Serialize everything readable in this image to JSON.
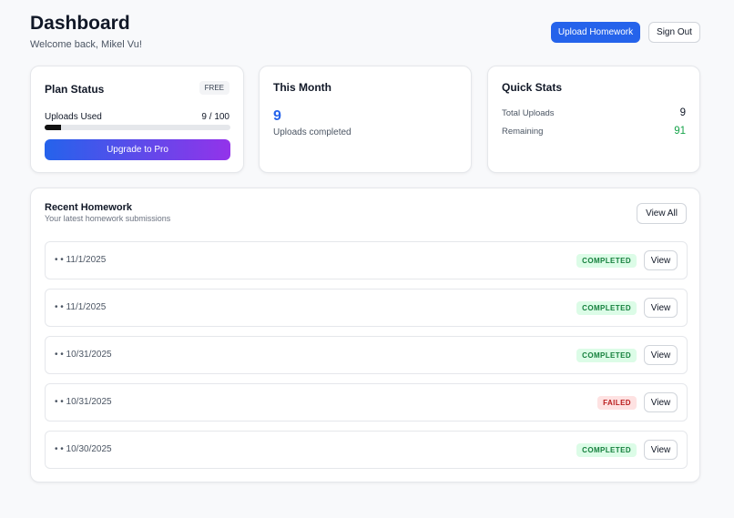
{
  "header": {
    "title": "Dashboard",
    "subtitle": "Welcome back, Mikel Vu!",
    "buttons": [
      "Upload Homework",
      "Sign Out"
    ]
  },
  "plan": {
    "title": "Plan Status",
    "badge": "FREE",
    "uploads_label": "Uploads Used",
    "uploads_used": 9,
    "separator": "/",
    "uploads_limit": 100,
    "button": "Upgrade to Pro"
  },
  "month": {
    "title": "This Month",
    "value": 9,
    "label": "Uploads completed"
  },
  "stats": {
    "title": "Quick Stats",
    "rows": [
      {
        "label": "Total Uploads",
        "value": 9,
        "color": "#111827"
      },
      {
        "label": "Remaining",
        "value": 91,
        "color": "#16a34a"
      }
    ]
  },
  "recent": {
    "title": "Recent Homework",
    "subtitle": "Your latest homework submissions",
    "button": "View All",
    "items": [
      {
        "title": "• • 11/1/2025",
        "status": "COMPLETED",
        "status_color": "#15803d",
        "status_bg": "#dcfce7",
        "action": "View"
      },
      {
        "title": "• • 11/1/2025",
        "status": "COMPLETED",
        "status_color": "#15803d",
        "status_bg": "#dcfce7",
        "action": "View"
      },
      {
        "title": "• • 10/31/2025",
        "status": "COMPLETED",
        "status_color": "#15803d",
        "status_bg": "#dcfce7",
        "action": "View"
      },
      {
        "title": "• • 10/31/2025",
        "status": "FAILED",
        "status_color": "#b91c1c",
        "status_bg": "#fee2e2",
        "action": "View"
      },
      {
        "title": "• • 10/30/2025",
        "status": "COMPLETED",
        "status_color": "#15803d",
        "status_bg": "#dcfce7",
        "action": "View"
      }
    ]
  }
}
